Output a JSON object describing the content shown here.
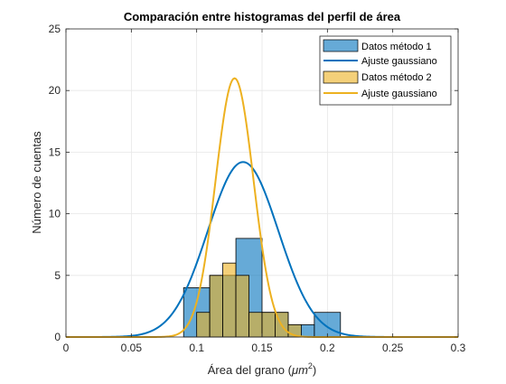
{
  "chart_data": {
    "type": "bar",
    "title": "Comparación entre histogramas del perfil de área",
    "xlabel": "Área del grano (μm²)",
    "xlabel_parts": {
      "text": "Área del grano (",
      "unit_base": "μm",
      "unit_exp": "2",
      "close": ")"
    },
    "ylabel": "Número de cuentas",
    "xlim": [
      0,
      0.3
    ],
    "ylim": [
      0,
      25
    ],
    "xticks": [
      0,
      0.05,
      0.1,
      0.15,
      0.2,
      0.25,
      0.3
    ],
    "xtick_labels": [
      "0",
      "0.05",
      "0.1",
      "0.15",
      "0.2",
      "0.25",
      "0.3"
    ],
    "yticks": [
      0,
      5,
      10,
      15,
      20,
      25
    ],
    "ytick_labels": [
      "0",
      "5",
      "10",
      "15",
      "20",
      "25"
    ],
    "grid": true,
    "legend_position": "top-right",
    "series": [
      {
        "name": "Datos método 1",
        "kind": "histogram",
        "color": "#0072BD",
        "fill": "rgba(0,114,189,0.6)",
        "bins": [
          {
            "x0": 0.09,
            "x1": 0.11,
            "count": 4
          },
          {
            "x0": 0.11,
            "x1": 0.13,
            "count": 5
          },
          {
            "x0": 0.13,
            "x1": 0.15,
            "count": 8
          },
          {
            "x0": 0.15,
            "x1": 0.17,
            "count": 2
          },
          {
            "x0": 0.17,
            "x1": 0.19,
            "count": 1
          },
          {
            "x0": 0.19,
            "x1": 0.21,
            "count": 2
          }
        ]
      },
      {
        "name": "Ajuste gaussiano",
        "kind": "gaussian",
        "color": "#0072BD",
        "peak": 14.2,
        "mean": 0.1355,
        "sigma": 0.027
      },
      {
        "name": "Datos método 2",
        "kind": "histogram",
        "color": "#EDB120",
        "fill": "rgba(237,177,32,0.6)",
        "bins": [
          {
            "x0": 0.1,
            "x1": 0.11,
            "count": 2
          },
          {
            "x0": 0.11,
            "x1": 0.12,
            "count": 5
          },
          {
            "x0": 0.12,
            "x1": 0.13,
            "count": 6
          },
          {
            "x0": 0.13,
            "x1": 0.14,
            "count": 5
          },
          {
            "x0": 0.14,
            "x1": 0.15,
            "count": 2
          },
          {
            "x0": 0.15,
            "x1": 0.16,
            "count": 2
          },
          {
            "x0": 0.16,
            "x1": 0.17,
            "count": 2
          },
          {
            "x0": 0.17,
            "x1": 0.18,
            "count": 1
          }
        ]
      },
      {
        "name": "Ajuste gaussiano",
        "kind": "gaussian",
        "color": "#EDB120",
        "peak": 21,
        "mean": 0.129,
        "sigma": 0.0145
      }
    ],
    "style": {
      "axis_color": "#262626",
      "grid_color": "#e6e6e6",
      "background": "#ffffff"
    }
  }
}
